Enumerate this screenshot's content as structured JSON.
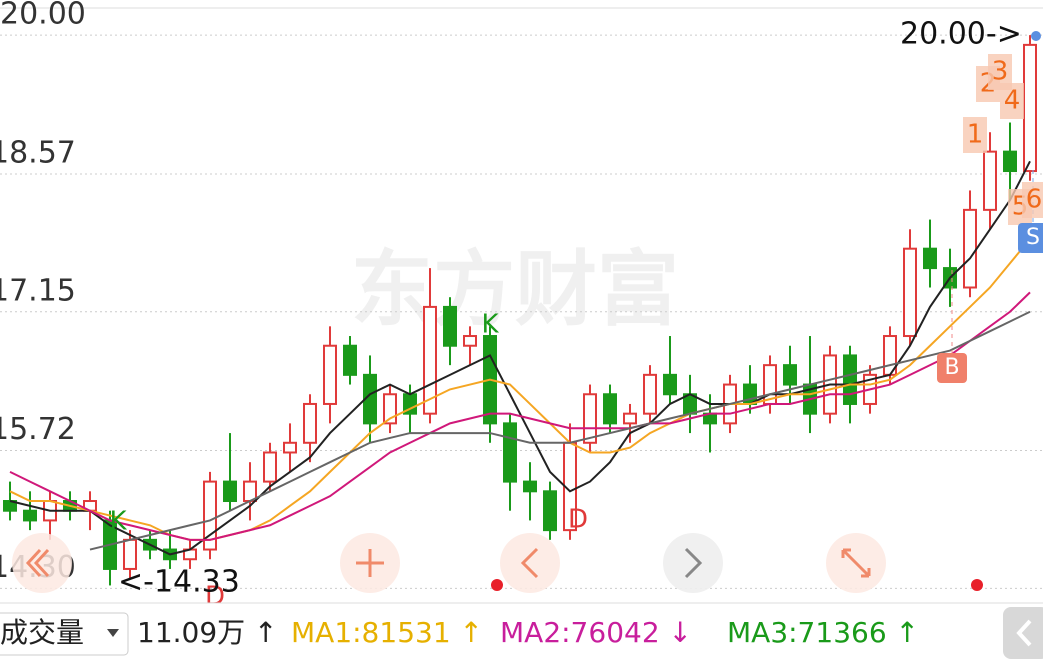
{
  "chart_data": {
    "type": "candlestick",
    "watermark": "东方财富",
    "ylim": [
      14.18,
      20.28
    ],
    "yticks": [
      {
        "value": 20,
        "label": "20.00"
      },
      18.57,
      17.15,
      15.72,
      {
        "value": 14.3,
        "label": "14.30"
      }
    ],
    "grid": true,
    "up_color": "#e03a3a",
    "down_color": "#1a9a1a",
    "candles": [
      {
        "open": 15.2,
        "high": 15.4,
        "low": 15.0,
        "close": 15.1
      },
      {
        "open": 15.1,
        "high": 15.3,
        "low": 14.9,
        "close": 15.0
      },
      {
        "open": 15.0,
        "high": 15.3,
        "low": 14.8,
        "close": 15.2
      },
      {
        "open": 15.2,
        "high": 15.3,
        "low": 15.0,
        "close": 15.1
      },
      {
        "open": 15.1,
        "high": 15.3,
        "low": 14.9,
        "close": 15.2
      },
      {
        "open": 15.0,
        "high": 15.1,
        "low": 14.33,
        "close": 14.5
      },
      {
        "open": 14.5,
        "high": 14.9,
        "low": 14.4,
        "close": 14.8
      },
      {
        "open": 14.8,
        "high": 14.9,
        "low": 14.6,
        "close": 14.7
      },
      {
        "open": 14.7,
        "high": 14.9,
        "low": 14.5,
        "close": 14.6
      },
      {
        "open": 14.6,
        "high": 14.8,
        "low": 14.5,
        "close": 14.7
      },
      {
        "open": 14.7,
        "high": 15.5,
        "low": 14.6,
        "close": 15.4
      },
      {
        "open": 15.4,
        "high": 15.9,
        "low": 15.1,
        "close": 15.2
      },
      {
        "open": 15.2,
        "high": 15.6,
        "low": 15.0,
        "close": 15.4
      },
      {
        "open": 15.4,
        "high": 15.8,
        "low": 15.3,
        "close": 15.7
      },
      {
        "open": 15.7,
        "high": 16.0,
        "low": 15.5,
        "close": 15.8
      },
      {
        "open": 15.8,
        "high": 16.3,
        "low": 15.6,
        "close": 16.2
      },
      {
        "open": 16.2,
        "high": 17.0,
        "low": 16.0,
        "close": 16.8
      },
      {
        "open": 16.8,
        "high": 16.9,
        "low": 16.4,
        "close": 16.5
      },
      {
        "open": 16.5,
        "high": 16.7,
        "low": 15.8,
        "close": 16.0
      },
      {
        "open": 16.0,
        "high": 16.4,
        "low": 15.9,
        "close": 16.3
      },
      {
        "open": 16.3,
        "high": 16.4,
        "low": 15.9,
        "close": 16.1
      },
      {
        "open": 16.1,
        "high": 17.6,
        "low": 16.0,
        "close": 17.2
      },
      {
        "open": 17.2,
        "high": 17.3,
        "low": 16.6,
        "close": 16.8
      },
      {
        "open": 16.8,
        "high": 17.0,
        "low": 16.6,
        "close": 16.9
      },
      {
        "open": 16.9,
        "high": 17.0,
        "low": 15.8,
        "close": 16.0
      },
      {
        "open": 16.0,
        "high": 16.1,
        "low": 15.1,
        "close": 15.4
      },
      {
        "open": 15.4,
        "high": 15.6,
        "low": 15.0,
        "close": 15.3
      },
      {
        "open": 15.3,
        "high": 15.4,
        "low": 14.8,
        "close": 14.9
      },
      {
        "open": 14.9,
        "high": 16.0,
        "low": 14.8,
        "close": 15.8
      },
      {
        "open": 15.8,
        "high": 16.4,
        "low": 15.7,
        "close": 16.3
      },
      {
        "open": 16.3,
        "high": 16.4,
        "low": 15.9,
        "close": 16.0
      },
      {
        "open": 16.0,
        "high": 16.2,
        "low": 15.8,
        "close": 16.1
      },
      {
        "open": 16.1,
        "high": 16.6,
        "low": 16.0,
        "close": 16.5
      },
      {
        "open": 16.5,
        "high": 16.9,
        "low": 16.2,
        "close": 16.3
      },
      {
        "open": 16.3,
        "high": 16.5,
        "low": 15.9,
        "close": 16.1
      },
      {
        "open": 16.1,
        "high": 16.3,
        "low": 15.7,
        "close": 16.0
      },
      {
        "open": 16.0,
        "high": 16.5,
        "low": 15.9,
        "close": 16.4
      },
      {
        "open": 16.4,
        "high": 16.6,
        "low": 16.1,
        "close": 16.2
      },
      {
        "open": 16.2,
        "high": 16.7,
        "low": 16.1,
        "close": 16.6
      },
      {
        "open": 16.6,
        "high": 16.8,
        "low": 16.2,
        "close": 16.4
      },
      {
        "open": 16.4,
        "high": 16.9,
        "low": 15.9,
        "close": 16.1
      },
      {
        "open": 16.1,
        "high": 16.8,
        "low": 16.0,
        "close": 16.7
      },
      {
        "open": 16.7,
        "high": 16.8,
        "low": 16.0,
        "close": 16.2
      },
      {
        "open": 16.2,
        "high": 16.6,
        "low": 16.1,
        "close": 16.5
      },
      {
        "open": 16.5,
        "high": 17.0,
        "low": 16.4,
        "close": 16.9
      },
      {
        "open": 16.9,
        "high": 18.0,
        "low": 16.8,
        "close": 17.8
      },
      {
        "open": 17.8,
        "high": 18.1,
        "low": 17.4,
        "close": 17.6
      },
      {
        "open": 17.6,
        "high": 17.8,
        "low": 17.2,
        "close": 17.4
      },
      {
        "open": 17.4,
        "high": 18.4,
        "low": 17.3,
        "close": 18.2
      },
      {
        "open": 18.2,
        "high": 19.0,
        "low": 18.0,
        "close": 18.8
      },
      {
        "open": 18.8,
        "high": 19.1,
        "low": 18.3,
        "close": 18.6
      },
      {
        "open": 18.6,
        "high": 20.0,
        "low": 18.5,
        "close": 19.9
      }
    ],
    "series": [
      {
        "color": "#222222",
        "values": [
          15.2,
          15.15,
          15.1,
          15.1,
          15.1,
          14.95,
          14.85,
          14.75,
          14.65,
          14.7,
          14.85,
          15.0,
          15.15,
          15.35,
          15.5,
          15.65,
          15.9,
          16.1,
          16.3,
          16.4,
          16.3,
          16.4,
          16.5,
          16.6,
          16.7,
          16.3,
          15.9,
          15.5,
          15.3,
          15.4,
          15.6,
          15.9,
          16.0,
          16.2,
          16.3,
          16.2,
          16.2,
          16.2,
          16.3,
          16.3,
          16.35,
          16.4,
          16.4,
          16.45,
          16.5,
          16.8,
          17.2,
          17.5,
          17.7,
          18.0,
          18.3,
          18.7
        ]
      },
      {
        "color": "#f5a623",
        "values": [
          15.3,
          15.2,
          15.2,
          15.15,
          15.1,
          15.05,
          15.0,
          14.95,
          14.85,
          14.8,
          14.8,
          14.85,
          14.9,
          15.0,
          15.15,
          15.3,
          15.5,
          15.7,
          15.9,
          16.05,
          16.15,
          16.25,
          16.35,
          16.4,
          16.45,
          16.4,
          16.2,
          16.0,
          15.8,
          15.7,
          15.7,
          15.75,
          15.9,
          16.0,
          16.1,
          16.15,
          16.2,
          16.2,
          16.25,
          16.3,
          16.3,
          16.35,
          16.4,
          16.4,
          16.45,
          16.6,
          16.8,
          17.0,
          17.2,
          17.4,
          17.65,
          17.9
        ]
      },
      {
        "color": "#d0187a",
        "values": [
          15.5,
          15.4,
          15.3,
          15.2,
          15.1,
          15.0,
          14.95,
          14.9,
          14.85,
          14.8,
          14.8,
          14.85,
          14.9,
          14.95,
          15.05,
          15.15,
          15.25,
          15.4,
          15.55,
          15.7,
          15.8,
          15.9,
          16.0,
          16.05,
          16.1,
          16.1,
          16.05,
          16.0,
          15.95,
          15.95,
          15.95,
          15.95,
          16.0,
          16.0,
          16.05,
          16.1,
          16.1,
          16.15,
          16.2,
          16.2,
          16.25,
          16.3,
          16.3,
          16.35,
          16.4,
          16.5,
          16.6,
          16.7,
          16.85,
          17.0,
          17.15,
          17.35
        ]
      },
      {
        "color": "#666666",
        "values": [
          null,
          null,
          null,
          null,
          14.7,
          14.75,
          14.8,
          14.85,
          14.9,
          14.95,
          15.0,
          15.1,
          15.2,
          15.3,
          15.4,
          15.5,
          15.6,
          15.7,
          15.8,
          15.85,
          15.9,
          15.9,
          15.9,
          15.9,
          15.9,
          15.85,
          15.8,
          15.8,
          15.8,
          15.85,
          15.9,
          15.95,
          16.0,
          16.05,
          16.1,
          16.15,
          16.2,
          16.25,
          16.3,
          16.35,
          16.4,
          16.45,
          16.5,
          16.55,
          16.6,
          16.65,
          16.7,
          16.75,
          16.85,
          16.95,
          17.05,
          17.15
        ]
      }
    ],
    "annotations": [
      "K",
      "K",
      "D",
      "D",
      "20.00->",
      "<-14.33",
      "1",
      "2",
      "3",
      "4",
      "5",
      "6",
      "B",
      "S"
    ]
  },
  "toolbar": {
    "indicator": "成交量",
    "volume": "11.09万 ↑",
    "ma1": "MA1:81531 ↑",
    "ma2": "MA2:76042 ↓",
    "ma3": "MA3:71366 ↑"
  }
}
